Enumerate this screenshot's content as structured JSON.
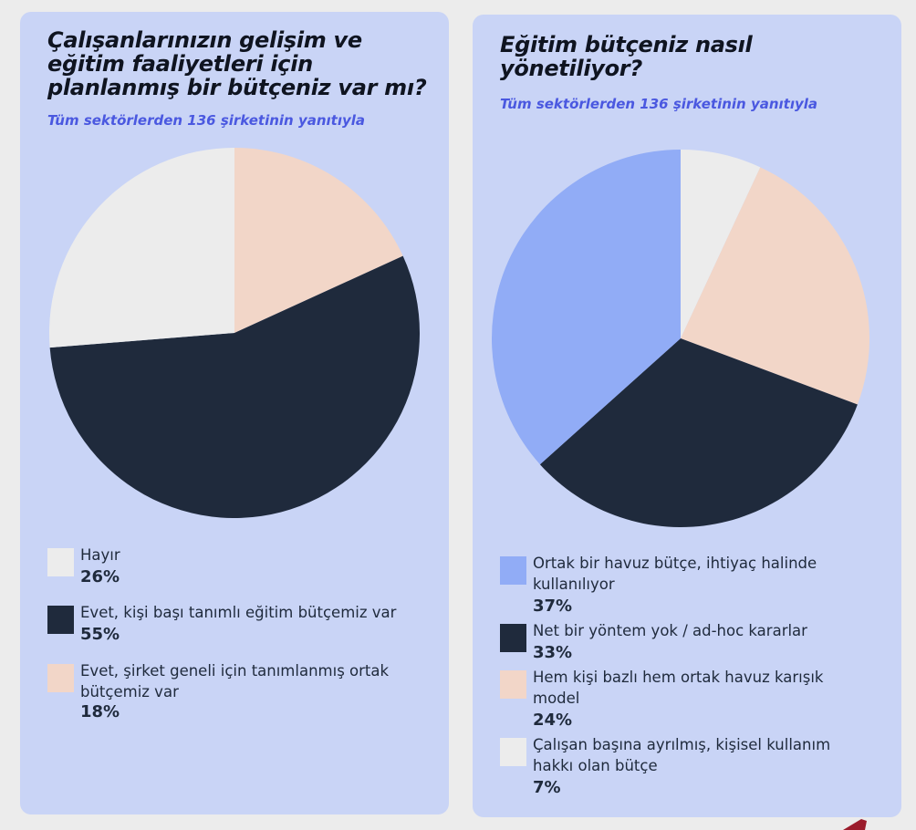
{
  "left_panel": {
    "title": "Çalışanlarınızın gelişim ve eğitim faaliyetleri için planlanmış bir bütçeniz var mı?",
    "subtitle": "Tüm sektörlerden 136 şirketinin yanıtıyla",
    "legend": [
      {
        "label": "Hayır",
        "value_label": "26%"
      },
      {
        "label": "Evet, kişi başı tanımlı eğitim bütçemiz var",
        "value_label": "55%"
      },
      {
        "label": "Evet, şirket geneli için tanımlanmış ortak bütçemiz var",
        "value_label": "18%"
      }
    ]
  },
  "right_panel": {
    "title": "Eğitim bütçeniz nasıl yönetiliyor?",
    "subtitle": "Tüm sektörlerden 136 şirketinin yanıtıyla",
    "legend": [
      {
        "label": "Ortak bir havuz bütçe, ihtiyaç halinde kullanılıyor",
        "value_label": "37%"
      },
      {
        "label": "Net bir yöntem yok / ad-hoc kararlar",
        "value_label": "33%"
      },
      {
        "label": "Hem kişi bazlı hem ortak havuz karışık model",
        "value_label": "24%"
      },
      {
        "label": "Çalışan başına ayrılmış, kişisel kullanım hakkı olan bütçe",
        "value_label": "7%"
      }
    ]
  },
  "chart_data": [
    {
      "type": "pie",
      "title": "Çalışanlarınızın gelişim ve eğitim faaliyetleri için planlanmış bir bütçeniz var mı?",
      "subtitle": "Tüm sektörlerden 136 şirketinin yanıtıyla",
      "categories": [
        "Hayır",
        "Evet, kişi başı tanımlı eğitim bütçemiz var",
        "Evet, şirket geneli için tanımlanmış ortak bütçemiz var"
      ],
      "values": [
        26,
        55,
        18
      ],
      "unit": "%",
      "colors": [
        "#ececec",
        "#1f2a3c",
        "#f2d6c8"
      ],
      "slice_order_clockwise_from_top": [
        "Evet, şirket geneli için tanımlanmış ortak bütçemiz var",
        "Evet, kişi başı tanımlı eğitim bütçemiz var",
        "Hayır"
      ],
      "legend_position": "bottom"
    },
    {
      "type": "pie",
      "title": "Eğitim bütçeniz nasıl yönetiliyor?",
      "subtitle": "Tüm sektörlerden 136 şirketinin yanıtıyla",
      "categories": [
        "Ortak bir havuz bütçe, ihtiyaç halinde kullanılıyor",
        "Net bir yöntem yok / ad-hoc kararlar",
        "Hem kişi bazlı hem ortak havuz karışık model",
        "Çalışan başına ayrılmış, kişisel kullanım hakkı olan bütçe"
      ],
      "values": [
        37,
        33,
        24,
        7
      ],
      "unit": "%",
      "colors": [
        "#91acf6",
        "#1f2a3c",
        "#f2d6c8",
        "#ececec"
      ],
      "slice_order_clockwise_from_top": [
        "Çalışan başına ayrılmış, kişisel kullanım hakkı olan bütçe",
        "Hem kişi bazlı hem ortak havuz karışık model",
        "Net bir yöntem yok / ad-hoc kararlar",
        "Ortak bir havuz bütçe, ihtiyaç halinde kullanılıyor"
      ],
      "legend_position": "bottom"
    }
  ],
  "decor": {
    "corner_mark_color": "#9b1c2c"
  }
}
